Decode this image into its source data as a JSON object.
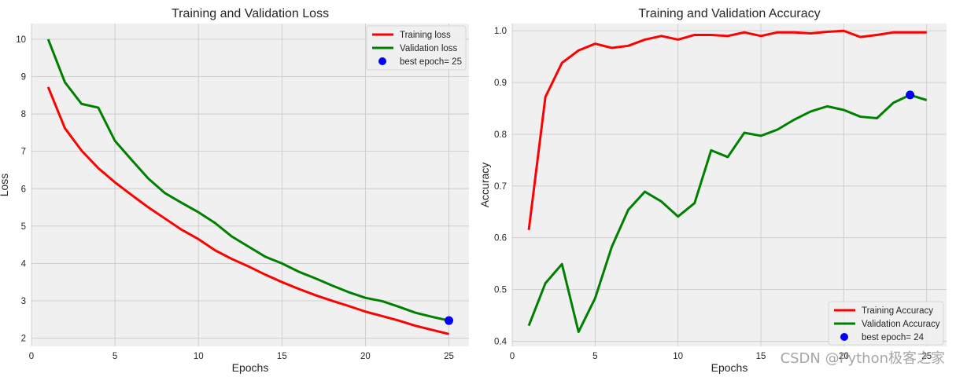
{
  "colors": {
    "panel_bg": "#f0f0f0",
    "grid": "#cbcbcb",
    "train": "#ff0000",
    "val": "#008000",
    "best": "#0000ff",
    "legend_bg": "#f0f0f0",
    "legend_border": "#d0d0d0"
  },
  "chart_data": [
    {
      "type": "line",
      "title": "Training and Validation Loss",
      "xlabel": "Epochs",
      "ylabel": "Loss",
      "xlim": [
        0,
        26.2
      ],
      "ylim": [
        1.78,
        10.42
      ],
      "xticks": [
        0,
        5,
        10,
        15,
        20,
        25
      ],
      "yticks": [
        2,
        3,
        4,
        5,
        6,
        7,
        8,
        9,
        10
      ],
      "xtick_labels": [
        "0",
        "5",
        "10",
        "15",
        "20",
        "25"
      ],
      "ytick_labels": [
        "2",
        "3",
        "4",
        "5",
        "6",
        "7",
        "8",
        "9",
        "10"
      ],
      "grid": true,
      "legend_position": "upper right",
      "x": [
        1,
        2,
        3,
        4,
        5,
        6,
        7,
        8,
        9,
        10,
        11,
        12,
        13,
        14,
        15,
        16,
        17,
        18,
        19,
        20,
        21,
        22,
        23,
        24,
        25
      ],
      "series": [
        {
          "name": "Training loss",
          "color": "#ff0000",
          "values": [
            8.72,
            7.62,
            7.02,
            6.55,
            6.17,
            5.83,
            5.5,
            5.2,
            4.9,
            4.65,
            4.35,
            4.12,
            3.92,
            3.7,
            3.5,
            3.32,
            3.15,
            3.0,
            2.86,
            2.71,
            2.59,
            2.47,
            2.33,
            2.22,
            2.11
          ]
        },
        {
          "name": "Validation loss",
          "color": "#008000",
          "values": [
            10.0,
            8.85,
            8.27,
            8.17,
            7.28,
            6.77,
            6.27,
            5.88,
            5.62,
            5.37,
            5.08,
            4.72,
            4.45,
            4.18,
            4.0,
            3.78,
            3.6,
            3.41,
            3.23,
            3.08,
            2.99,
            2.84,
            2.68,
            2.57,
            2.47
          ]
        }
      ],
      "best_point": {
        "name": "best epoch= 25",
        "x": 25,
        "y": 2.47,
        "color": "#0000ff"
      }
    },
    {
      "type": "line",
      "title": "Training and Validation Accuracy",
      "xlabel": "Epochs",
      "ylabel": "Accuracy",
      "xlim": [
        0,
        26.2
      ],
      "ylim": [
        0.39,
        1.014
      ],
      "xticks": [
        0,
        5,
        10,
        15,
        20,
        25
      ],
      "yticks": [
        0.4,
        0.5,
        0.6,
        0.7,
        0.8,
        0.9,
        1.0
      ],
      "xtick_labels": [
        "0",
        "5",
        "10",
        "15",
        "20",
        "25"
      ],
      "ytick_labels": [
        "0.4",
        "0.5",
        "0.6",
        "0.7",
        "0.8",
        "0.9",
        "1.0"
      ],
      "grid": true,
      "legend_position": "lower right",
      "x": [
        1,
        2,
        3,
        4,
        5,
        6,
        7,
        8,
        9,
        10,
        11,
        12,
        13,
        14,
        15,
        16,
        17,
        18,
        19,
        20,
        21,
        22,
        23,
        24,
        25
      ],
      "series": [
        {
          "name": "Training Accuracy",
          "color": "#ff0000",
          "values": [
            0.615,
            0.872,
            0.938,
            0.962,
            0.975,
            0.967,
            0.971,
            0.983,
            0.99,
            0.983,
            0.992,
            0.992,
            0.99,
            0.997,
            0.99,
            0.997,
            0.997,
            0.995,
            0.998,
            1.0,
            0.988,
            0.992,
            0.997,
            0.997,
            0.997
          ]
        },
        {
          "name": "Validation Accuracy",
          "color": "#008000",
          "values": [
            0.43,
            0.512,
            0.549,
            0.418,
            0.483,
            0.582,
            0.654,
            0.689,
            0.67,
            0.641,
            0.667,
            0.769,
            0.756,
            0.803,
            0.797,
            0.809,
            0.828,
            0.844,
            0.854,
            0.847,
            0.834,
            0.831,
            0.861,
            0.876,
            0.866
          ]
        }
      ],
      "best_point": {
        "name": "best epoch= 24",
        "x": 24,
        "y": 0.876,
        "color": "#0000ff"
      }
    }
  ],
  "watermark": "CSDN @Python极客之家"
}
